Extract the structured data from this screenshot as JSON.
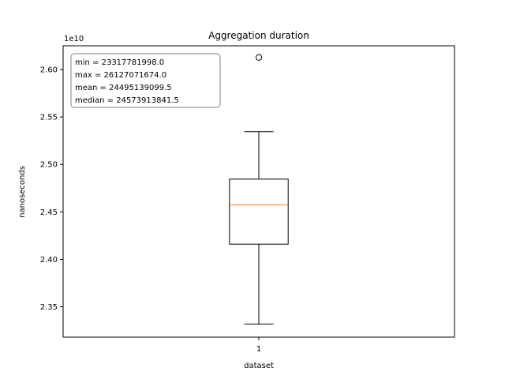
{
  "chart_data": {
    "type": "box",
    "title": "Aggregation duration",
    "xlabel": "dataset",
    "ylabel": "nanoseconds",
    "y_multiplier_label": "1e10",
    "x_tick_labels": [
      "1"
    ],
    "y_ticks": [
      2.35,
      2.4,
      2.45,
      2.5,
      2.55,
      2.6
    ],
    "y_tick_labels": [
      "2.35",
      "2.40",
      "2.45",
      "2.50",
      "2.55",
      "2.60"
    ],
    "ylim": [
      2.318,
      2.625
    ],
    "xlim": [
      0.5,
      1.5
    ],
    "series": [
      {
        "whisker_low": 2.3318,
        "q1": 2.416,
        "median": 2.4574,
        "q3": 2.4845,
        "whisker_high": 2.5345,
        "outliers": [
          2.6127
        ]
      }
    ],
    "stats_box": {
      "min": "min = 23317781998.0",
      "max": "max = 26127071674.0",
      "mean": "mean = 24495139099.5",
      "median": "median = 24573913841.5"
    },
    "colors": {
      "box": "#000000",
      "median_line": "#ff7f0e",
      "stats_border": "#808080"
    },
    "grid": false
  }
}
